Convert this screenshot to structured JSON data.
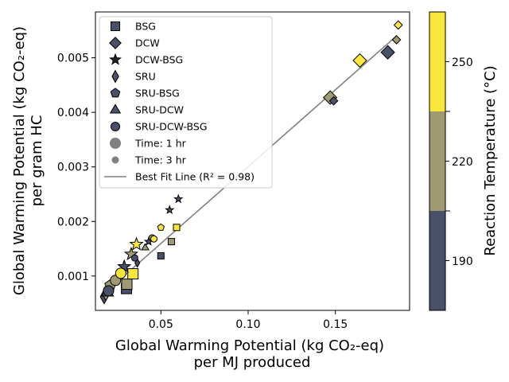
{
  "chart_data": {
    "type": "scatter",
    "xlabel": [
      "Global Warming Potential (kg CO₂-eq)",
      "per MJ produced"
    ],
    "ylabel": [
      "Global Warming Potential (kg CO₂-eq)",
      "per gram HC"
    ],
    "xlim": [
      0.0125,
      0.1925
    ],
    "ylim": [
      0.00037,
      0.00584
    ],
    "xticks": [
      0.05,
      0.1,
      0.15
    ],
    "xtick_labels": [
      "0.05",
      "0.10",
      "0.15"
    ],
    "yticks": [
      0.001,
      0.002,
      0.003,
      0.004,
      0.005
    ],
    "ytick_labels": [
      "0.001",
      "0.002",
      "0.003",
      "0.004",
      "0.005"
    ],
    "grid": false,
    "legend_position": "upper-left",
    "colorbar": {
      "label": "Reaction Temperature (°C)",
      "ticks": [
        190,
        220,
        250
      ],
      "tick_labels": [
        "190",
        "220",
        "250"
      ],
      "colors": {
        "190": "#4a5068",
        "220": "#a09a72",
        "250": "#fbe63a"
      }
    },
    "legend": [
      {
        "label": "BSG",
        "marker": "square",
        "color": "#4a5068"
      },
      {
        "label": "DCW",
        "marker": "diamond",
        "color": "#4a5068"
      },
      {
        "label": "DCW-BSG",
        "marker": "star",
        "color": "#222222"
      },
      {
        "label": "SRU",
        "marker": "thin-diamond",
        "color": "#4a5068"
      },
      {
        "label": "SRU-BSG",
        "marker": "pentagon",
        "color": "#4a5068"
      },
      {
        "label": "SRU-DCW",
        "marker": "triangle",
        "color": "#4a5068"
      },
      {
        "label": "SRU-DCW-BSG",
        "marker": "circle",
        "color": "#4a5068"
      },
      {
        "label": "Time: 1 hr",
        "marker": "circle-large",
        "color": "#808080"
      },
      {
        "label": "Time: 3 hr",
        "marker": "circle-small",
        "color": "#808080"
      },
      {
        "label": "Best Fit Line (R² = 0.98)",
        "marker": "line",
        "color": "#808080"
      }
    ],
    "fit_line": {
      "x": [
        0.02,
        0.185
      ],
      "y": [
        0.00075,
        0.0054
      ]
    },
    "points": [
      {
        "x": 0.0303,
        "y": 0.00077,
        "marker": "square",
        "temp": 190,
        "time": 1
      },
      {
        "x": 0.0305,
        "y": 0.00085,
        "marker": "square",
        "temp": 220,
        "time": 1
      },
      {
        "x": 0.034,
        "y": 0.00104,
        "marker": "square",
        "temp": 250,
        "time": 1
      },
      {
        "x": 0.05,
        "y": 0.00137,
        "marker": "square",
        "temp": 190,
        "time": 3
      },
      {
        "x": 0.056,
        "y": 0.00163,
        "marker": "square",
        "temp": 220,
        "time": 3
      },
      {
        "x": 0.059,
        "y": 0.00189,
        "marker": "square",
        "temp": 250,
        "time": 3
      },
      {
        "x": 0.18,
        "y": 0.0051,
        "marker": "diamond",
        "temp": 190,
        "time": 1
      },
      {
        "x": 0.147,
        "y": 0.00427,
        "marker": "diamond",
        "temp": 220,
        "time": 1
      },
      {
        "x": 0.164,
        "y": 0.00495,
        "marker": "diamond",
        "temp": 250,
        "time": 1
      },
      {
        "x": 0.149,
        "y": 0.00421,
        "marker": "diamond",
        "temp": 190,
        "time": 3
      },
      {
        "x": 0.185,
        "y": 0.00533,
        "marker": "diamond",
        "temp": 220,
        "time": 3
      },
      {
        "x": 0.186,
        "y": 0.0056,
        "marker": "diamond",
        "temp": 250,
        "time": 3
      },
      {
        "x": 0.029,
        "y": 0.00117,
        "marker": "star",
        "temp": 190,
        "time": 1
      },
      {
        "x": 0.033,
        "y": 0.0014,
        "marker": "star",
        "temp": 220,
        "time": 1
      },
      {
        "x": 0.036,
        "y": 0.00158,
        "marker": "star",
        "temp": 250,
        "time": 1
      },
      {
        "x": 0.043,
        "y": 0.00163,
        "marker": "star",
        "temp": 190,
        "time": 3
      },
      {
        "x": 0.055,
        "y": 0.00221,
        "marker": "star",
        "temp": 190,
        "time": 3
      },
      {
        "x": 0.06,
        "y": 0.00241,
        "marker": "star",
        "temp": 190,
        "time": 3
      },
      {
        "x": 0.0175,
        "y": 0.00062,
        "marker": "thin-diamond",
        "temp": 190,
        "time": 1
      },
      {
        "x": 0.0185,
        "y": 0.00068,
        "marker": "thin-diamond",
        "temp": 220,
        "time": 1
      },
      {
        "x": 0.0365,
        "y": 0.00124,
        "marker": "thin-diamond",
        "temp": 190,
        "time": 3
      },
      {
        "x": 0.021,
        "y": 0.00083,
        "marker": "pentagon",
        "temp": 220,
        "time": 1
      },
      {
        "x": 0.05,
        "y": 0.00189,
        "marker": "pentagon",
        "temp": 250,
        "time": 3
      },
      {
        "x": 0.0195,
        "y": 0.0007,
        "marker": "triangle",
        "temp": 190,
        "time": 1
      },
      {
        "x": 0.041,
        "y": 0.00152,
        "marker": "triangle",
        "temp": 220,
        "time": 3
      },
      {
        "x": 0.02,
        "y": 0.00073,
        "marker": "circle",
        "temp": 190,
        "time": 1
      },
      {
        "x": 0.024,
        "y": 0.00092,
        "marker": "circle",
        "temp": 220,
        "time": 1
      },
      {
        "x": 0.027,
        "y": 0.00105,
        "marker": "circle",
        "temp": 250,
        "time": 1
      },
      {
        "x": 0.035,
        "y": 0.00133,
        "marker": "circle",
        "temp": 190,
        "time": 3
      },
      {
        "x": 0.045,
        "y": 0.0017,
        "marker": "circle",
        "temp": 220,
        "time": 3
      },
      {
        "x": 0.046,
        "y": 0.00168,
        "marker": "circle",
        "temp": 250,
        "time": 3
      }
    ]
  }
}
